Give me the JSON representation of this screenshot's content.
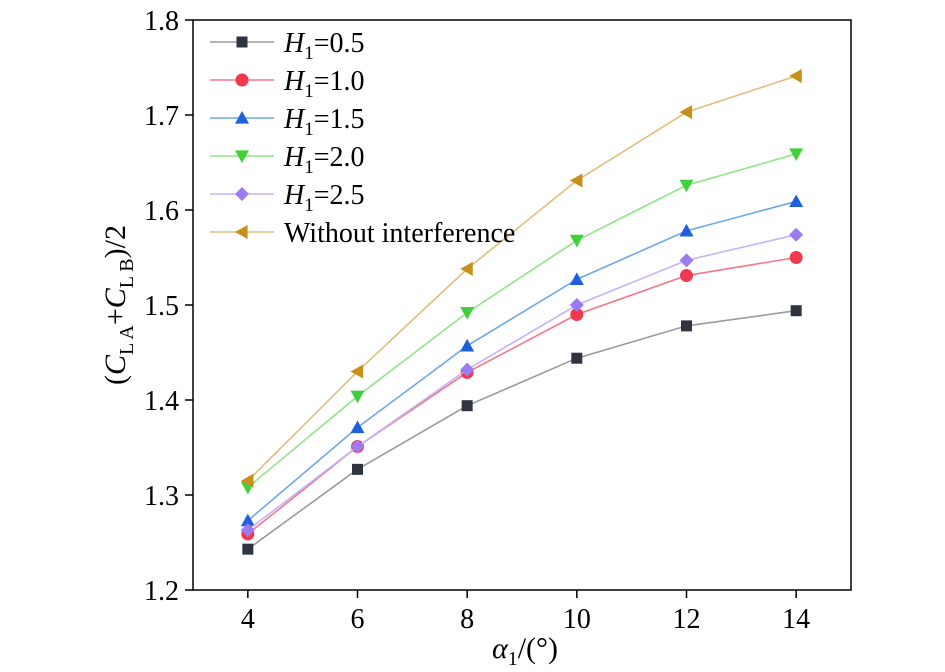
{
  "chart_data": {
    "type": "line",
    "title": "",
    "xlabel": "α1/(°)",
    "ylabel": "(CLA+CLB)/2",
    "xlim": [
      3,
      15
    ],
    "ylim": [
      1.2,
      1.8
    ],
    "x": [
      4,
      6,
      8,
      10,
      12,
      14
    ],
    "x_ticks": [
      "4",
      "6",
      "8",
      "10",
      "12",
      "14"
    ],
    "y_ticks": [
      "1.2",
      "1.3",
      "1.4",
      "1.5",
      "1.6",
      "1.7",
      "1.8"
    ],
    "legend_position": "top-left",
    "series": [
      {
        "name": "H1=0.5",
        "label_var": "H",
        "label_sub": "1",
        "label_rest": "=0.5",
        "color": "#2e3440",
        "line_color": "#9a9a9a",
        "marker": "square",
        "values": [
          1.243,
          1.327,
          1.394,
          1.444,
          1.478,
          1.494
        ]
      },
      {
        "name": "H1=1.0",
        "label_var": "H",
        "label_sub": "1",
        "label_rest": "=1.0",
        "color": "#f0384f",
        "line_color": "#f5758a",
        "marker": "circle",
        "values": [
          1.259,
          1.351,
          1.429,
          1.49,
          1.531,
          1.55
        ]
      },
      {
        "name": "H1=1.5",
        "label_var": "H",
        "label_sub": "1",
        "label_rest": "=1.5",
        "color": "#1f5fe0",
        "line_color": "#6fa8e8",
        "marker": "triangle-up",
        "values": [
          1.273,
          1.371,
          1.457,
          1.527,
          1.578,
          1.609
        ]
      },
      {
        "name": "H1=2.0",
        "label_var": "H",
        "label_sub": "1",
        "label_rest": "=2.0",
        "color": "#3fd13a",
        "line_color": "#92e38a",
        "marker": "triangle-down",
        "values": [
          1.308,
          1.404,
          1.492,
          1.568,
          1.626,
          1.659
        ]
      },
      {
        "name": "H1=2.5",
        "label_var": "H",
        "label_sub": "1",
        "label_rest": "=2.5",
        "color": "#9b7cf0",
        "line_color": "#c6b3f5",
        "marker": "diamond",
        "values": [
          1.263,
          1.351,
          1.432,
          1.5,
          1.547,
          1.574
        ]
      },
      {
        "name": "Without interference",
        "label_var": "",
        "label_sub": "",
        "label_rest": "Without interference",
        "color": "#c8901a",
        "line_color": "#dfbf7a",
        "marker": "triangle-left",
        "values": [
          1.315,
          1.43,
          1.538,
          1.631,
          1.703,
          1.741
        ]
      }
    ]
  }
}
